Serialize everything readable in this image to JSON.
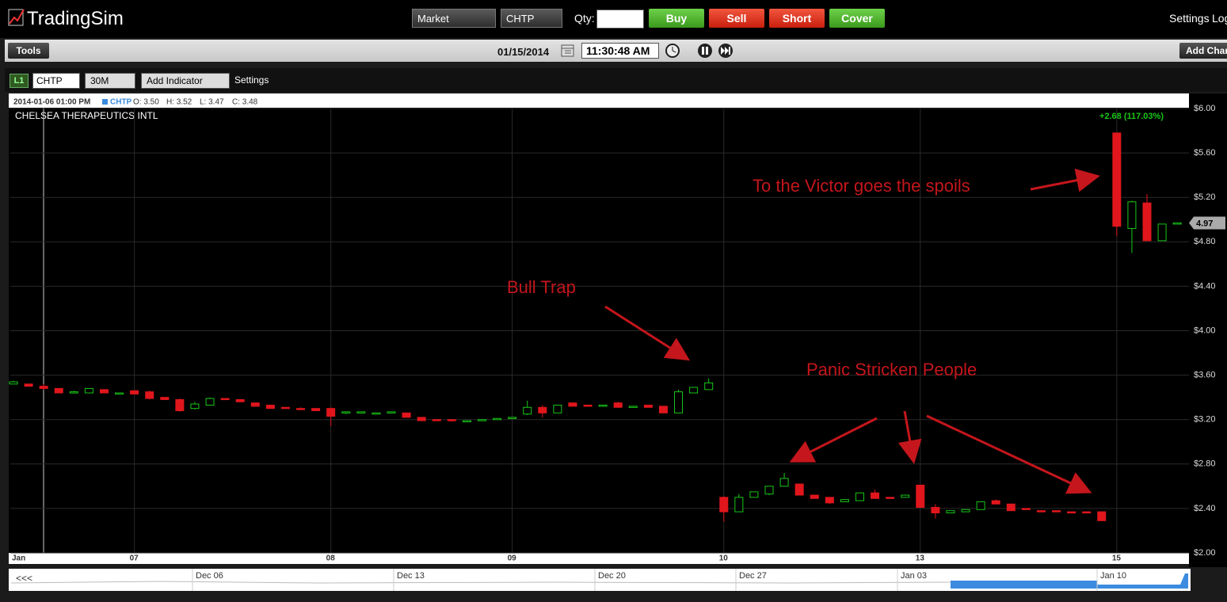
{
  "header": {
    "logo": "TradingSim",
    "order_type": "Market",
    "symbol": "CHTP",
    "qty_label": "Qty:",
    "buttons": [
      "Buy",
      "Sell",
      "Short",
      "Cover"
    ],
    "settings": "Settings",
    "logout": "Log"
  },
  "toolbar": {
    "tools": "Tools",
    "date": "01/15/2014",
    "time": "11:30:48 AM",
    "add_chart": "Add Char"
  },
  "chart_toolbar": {
    "level": "L1",
    "symbol": "CHTP",
    "interval": "30M",
    "add_indicator": "Add Indicator",
    "settings": "Settings"
  },
  "chart_data": {
    "type": "candlestick",
    "title": "CHELSEA THERAPEUTICS INTL",
    "info": {
      "datetime": "2014-01-06 01:00 PM",
      "symbol": "CHTP",
      "open": "O: 3.50",
      "high": "H: 3.52",
      "low": "L: 3.47",
      "close": "C: 3.48"
    },
    "change_label": "+2.68 (117.03%)",
    "last_price": {
      "value": 4.97,
      "label": "4.97"
    },
    "annotations": [
      "To the Victor goes the spoils",
      "Bull Trap",
      "Panic Stricken People"
    ],
    "up_color": "#17c717",
    "down_color": "#e0161c",
    "grid": true,
    "ylim": [
      2.0,
      6.0
    ],
    "yticks": [
      {
        "value": 2.0,
        "label": "$2.00"
      },
      {
        "value": 2.4,
        "label": "$2.40"
      },
      {
        "value": 2.8,
        "label": "$2.80"
      },
      {
        "value": 3.2,
        "label": "$3.20"
      },
      {
        "value": 3.6,
        "label": "$3.60"
      },
      {
        "value": 4.0,
        "label": "$4.00"
      },
      {
        "value": 4.4,
        "label": "$4.40"
      },
      {
        "value": 4.8,
        "label": "$4.80"
      },
      {
        "value": 5.2,
        "label": "$5.20"
      },
      {
        "value": 5.6,
        "label": "$5.60"
      },
      {
        "value": 6.0,
        "label": "$6.00"
      }
    ],
    "categories": [
      "Jan",
      null,
      null,
      null,
      null,
      null,
      null,
      null,
      "07",
      null,
      null,
      null,
      null,
      null,
      null,
      null,
      null,
      null,
      null,
      null,
      null,
      "08",
      null,
      null,
      null,
      null,
      null,
      null,
      null,
      null,
      null,
      null,
      null,
      "09",
      null,
      null,
      null,
      null,
      null,
      null,
      null,
      null,
      null,
      null,
      null,
      null,
      null,
      "10",
      null,
      null,
      null,
      null,
      null,
      null,
      null,
      null,
      null,
      null,
      null,
      null,
      "13",
      null,
      null,
      null,
      null,
      null,
      null,
      null,
      null,
      null,
      null,
      null,
      null,
      "15",
      null,
      null,
      null,
      null
    ],
    "open": [
      3.52,
      3.52,
      3.5,
      3.48,
      3.44,
      3.44,
      3.47,
      3.43,
      3.46,
      3.45,
      3.4,
      3.38,
      3.3,
      3.33,
      3.39,
      3.38,
      3.35,
      3.33,
      3.31,
      3.3,
      3.3,
      3.3,
      3.26,
      3.26,
      3.26,
      3.26,
      3.26,
      3.22,
      3.2,
      3.2,
      3.18,
      3.19,
      3.21,
      3.21,
      3.25,
      3.31,
      3.26,
      3.35,
      3.33,
      3.32,
      3.35,
      3.31,
      3.33,
      3.32,
      3.26,
      3.44,
      3.47,
      2.5,
      2.37,
      2.5,
      2.53,
      2.6,
      2.62,
      2.52,
      2.5,
      2.46,
      2.47,
      2.54,
      2.5,
      2.5,
      2.61,
      2.41,
      2.36,
      2.37,
      2.39,
      2.47,
      2.44,
      2.4,
      2.38,
      2.38,
      2.37,
      2.37,
      2.37,
      5.78,
      4.92,
      5.15,
      4.81,
      4.97
    ],
    "high": [
      3.55,
      3.52,
      3.52,
      3.48,
      3.46,
      3.48,
      3.47,
      3.44,
      3.46,
      3.46,
      3.4,
      3.39,
      3.36,
      3.4,
      3.39,
      3.38,
      3.35,
      3.33,
      3.31,
      3.31,
      3.3,
      3.31,
      3.27,
      3.27,
      3.26,
      3.27,
      3.26,
      3.22,
      3.2,
      3.2,
      3.19,
      3.2,
      3.21,
      3.22,
      3.37,
      3.33,
      3.33,
      3.35,
      3.33,
      3.33,
      3.36,
      3.32,
      3.33,
      3.32,
      3.47,
      3.49,
      3.57,
      2.51,
      2.53,
      2.55,
      2.6,
      2.72,
      2.62,
      2.52,
      2.5,
      2.48,
      2.54,
      2.57,
      2.5,
      2.52,
      2.61,
      2.44,
      2.38,
      2.39,
      2.46,
      2.48,
      2.44,
      2.4,
      2.38,
      2.38,
      2.37,
      2.37,
      2.37,
      5.78,
      5.17,
      5.23,
      4.96,
      4.97
    ],
    "low": [
      3.52,
      3.5,
      3.47,
      3.44,
      3.44,
      3.44,
      3.44,
      3.43,
      3.43,
      3.38,
      3.38,
      3.27,
      3.29,
      3.33,
      3.38,
      3.36,
      3.32,
      3.3,
      3.3,
      3.29,
      3.28,
      3.14,
      3.25,
      3.26,
      3.25,
      3.26,
      3.22,
      3.19,
      3.19,
      3.18,
      3.18,
      3.19,
      3.2,
      3.21,
      3.24,
      3.22,
      3.26,
      3.32,
      3.32,
      3.32,
      3.31,
      3.31,
      3.31,
      3.26,
      3.26,
      3.44,
      3.47,
      2.28,
      2.37,
      2.5,
      2.52,
      2.6,
      2.52,
      2.49,
      2.44,
      2.46,
      2.47,
      2.49,
      2.49,
      2.5,
      2.41,
      2.31,
      2.36,
      2.37,
      2.39,
      2.44,
      2.38,
      2.39,
      2.37,
      2.37,
      2.36,
      2.36,
      2.29,
      4.85,
      4.7,
      4.81,
      4.81,
      4.97
    ],
    "close": [
      3.54,
      3.5,
      3.48,
      3.44,
      3.45,
      3.48,
      3.44,
      3.44,
      3.43,
      3.39,
      3.38,
      3.28,
      3.34,
      3.39,
      3.38,
      3.36,
      3.32,
      3.3,
      3.3,
      3.29,
      3.28,
      3.23,
      3.27,
      3.27,
      3.26,
      3.27,
      3.22,
      3.19,
      3.19,
      3.19,
      3.19,
      3.2,
      3.21,
      3.22,
      3.31,
      3.26,
      3.33,
      3.32,
      3.32,
      3.33,
      3.31,
      3.32,
      3.31,
      3.26,
      3.45,
      3.49,
      3.53,
      2.37,
      2.5,
      2.55,
      2.6,
      2.67,
      2.52,
      2.49,
      2.45,
      2.48,
      2.54,
      2.49,
      2.49,
      2.52,
      2.41,
      2.36,
      2.38,
      2.39,
      2.46,
      2.44,
      2.38,
      2.39,
      2.37,
      2.37,
      2.36,
      2.36,
      2.29,
      4.94,
      5.16,
      4.81,
      4.96,
      4.97
    ]
  },
  "navigator": {
    "back": "<<<",
    "labels": [
      "Dec 06",
      "Dec 13",
      "Dec 20",
      "Dec 27",
      "Jan 03",
      "Jan 10"
    ]
  }
}
